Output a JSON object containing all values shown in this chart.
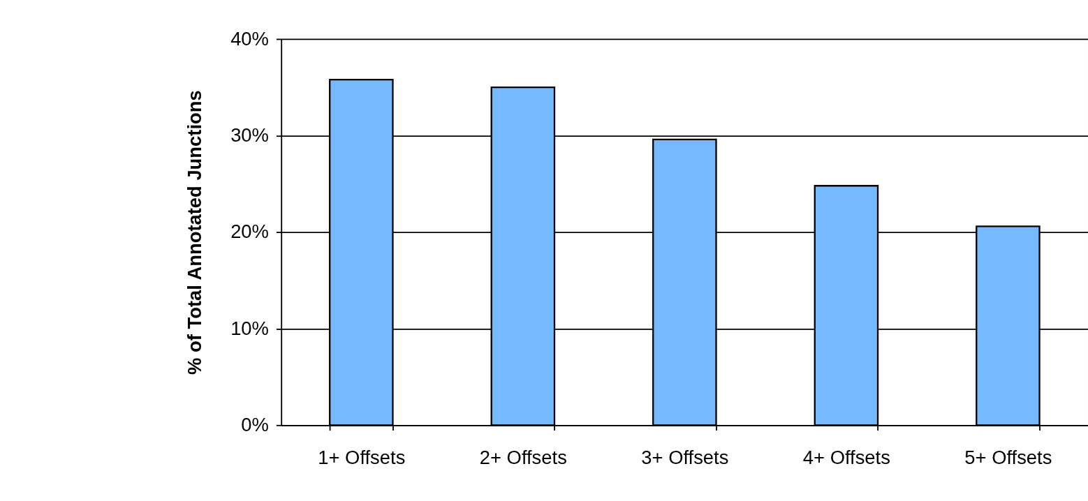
{
  "chart_data": {
    "type": "bar",
    "ylabel": "% of Total Annotated Junctions",
    "categories": [
      "1+ Offsets",
      "2+ Offsets",
      "3+ Offsets",
      "4+ Offsets",
      "5+ Offsets"
    ],
    "values": [
      35.8,
      35.0,
      29.6,
      24.8,
      20.6
    ],
    "color": "#75b9ff",
    "ylim": [
      0,
      40
    ],
    "yticks": [
      {
        "value": 0,
        "label": "0%"
      },
      {
        "value": 10,
        "label": "10%"
      },
      {
        "value": 20,
        "label": "20%"
      },
      {
        "value": 30,
        "label": "30%"
      },
      {
        "value": 40,
        "label": "40%"
      }
    ],
    "grid": "y"
  }
}
